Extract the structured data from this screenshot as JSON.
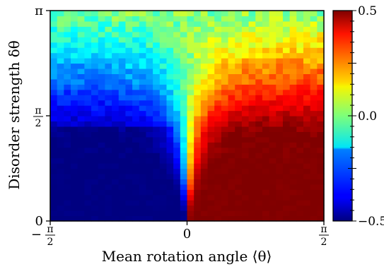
{
  "chart_data": {
    "type": "heatmap",
    "title": "",
    "xlabel": "Mean rotation angle ⟨θ⟩",
    "ylabel": "Disorder strength δθ",
    "xlim": [
      -1.5708,
      1.5708
    ],
    "ylim": [
      0,
      3.1416
    ],
    "x_ticks": [
      {
        "value": -1.5708,
        "num": "π",
        "den": "2",
        "sign": "−"
      },
      {
        "value": 0,
        "text": "0"
      },
      {
        "value": 1.5708,
        "num": "π",
        "den": "2",
        "sign": ""
      }
    ],
    "y_ticks": [
      {
        "value": 0,
        "text": "0"
      },
      {
        "value": 1.5708,
        "num": "π",
        "den": "2",
        "sign": ""
      },
      {
        "value": 3.1416,
        "text": "π"
      }
    ],
    "colorbar": {
      "colormap": "jet",
      "range": [
        -0.5,
        0.5
      ],
      "ticks": [
        {
          "value": 0.5,
          "text": "0.5"
        },
        {
          "value": 0.0,
          "text": "0.0"
        },
        {
          "value": -0.5,
          "text": "−0.5"
        }
      ]
    },
    "grid": {
      "nx": 40,
      "ny": 40,
      "description_of_values": "cell value in [-0.5, 0.5], row 0 = delta theta near 0"
    },
    "regions": [
      {
        "x_range": [
          -1.5708,
          0
        ],
        "y_range": [
          0,
          1.5708
        ],
        "approx_value": -0.5
      },
      {
        "x_range": [
          0,
          1.5708
        ],
        "y_range": [
          0,
          1.5708
        ],
        "approx_value": 0.5
      },
      {
        "x_range": [
          -1.5708,
          1.5708
        ],
        "y_range": [
          2.5,
          3.1416
        ],
        "approx_value": 0.0
      }
    ]
  }
}
